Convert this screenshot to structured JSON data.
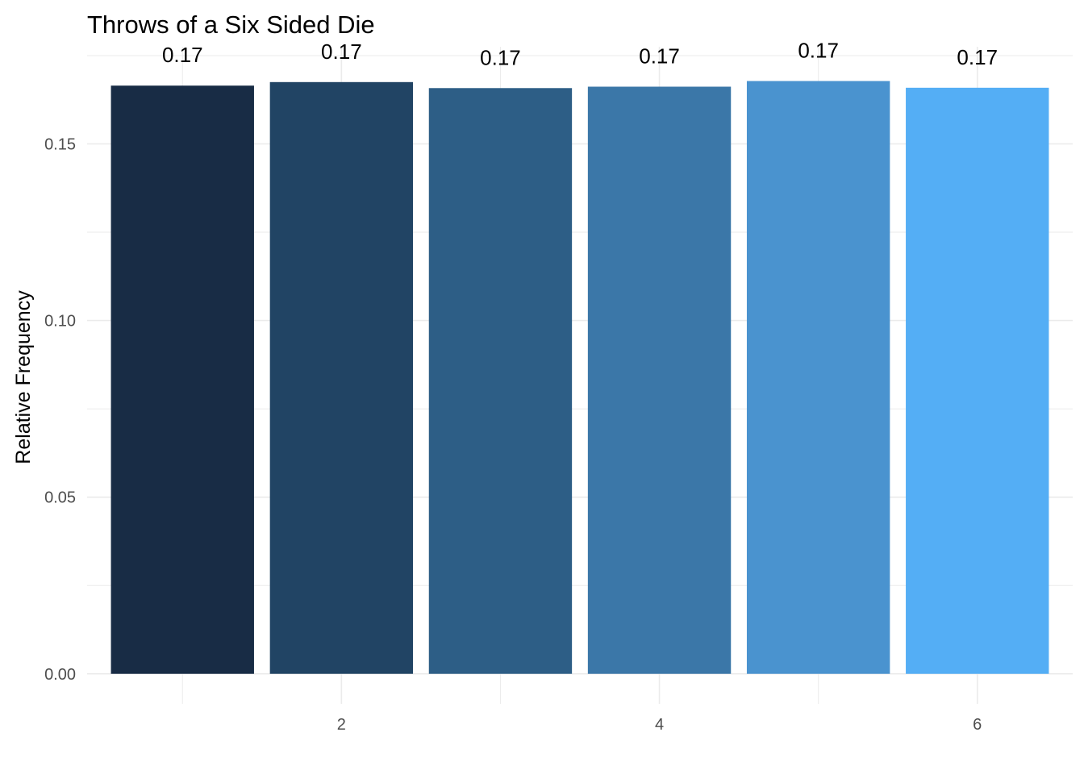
{
  "chart_data": {
    "type": "bar",
    "title": "Throws of a Six Sided Die",
    "xlabel": "",
    "ylabel": "Relative Frequency",
    "categories": [
      1,
      2,
      3,
      4,
      5,
      6
    ],
    "values": [
      0.1665,
      0.1675,
      0.1658,
      0.1662,
      0.1678,
      0.1659
    ],
    "data_labels": [
      "0.17",
      "0.17",
      "0.17",
      "0.17",
      "0.17",
      "0.17"
    ],
    "bar_colors": [
      "#182C45",
      "#214464",
      "#2D5E86",
      "#3B77A8",
      "#4A93CF",
      "#54AEF5"
    ],
    "ylim": [
      -0.0085,
      0.1775
    ],
    "xlim": [
      0.4,
      6.6
    ],
    "x_ticks": [
      2,
      4,
      6
    ],
    "x_tick_labels": [
      "2",
      "4",
      "6"
    ],
    "y_ticks": [
      0,
      0.05,
      0.1,
      0.15
    ],
    "y_tick_labels": [
      "0.00",
      "0.05",
      "0.10",
      "0.15"
    ],
    "grid": true,
    "legend": "none",
    "grid_color": "#EBEBEB"
  }
}
